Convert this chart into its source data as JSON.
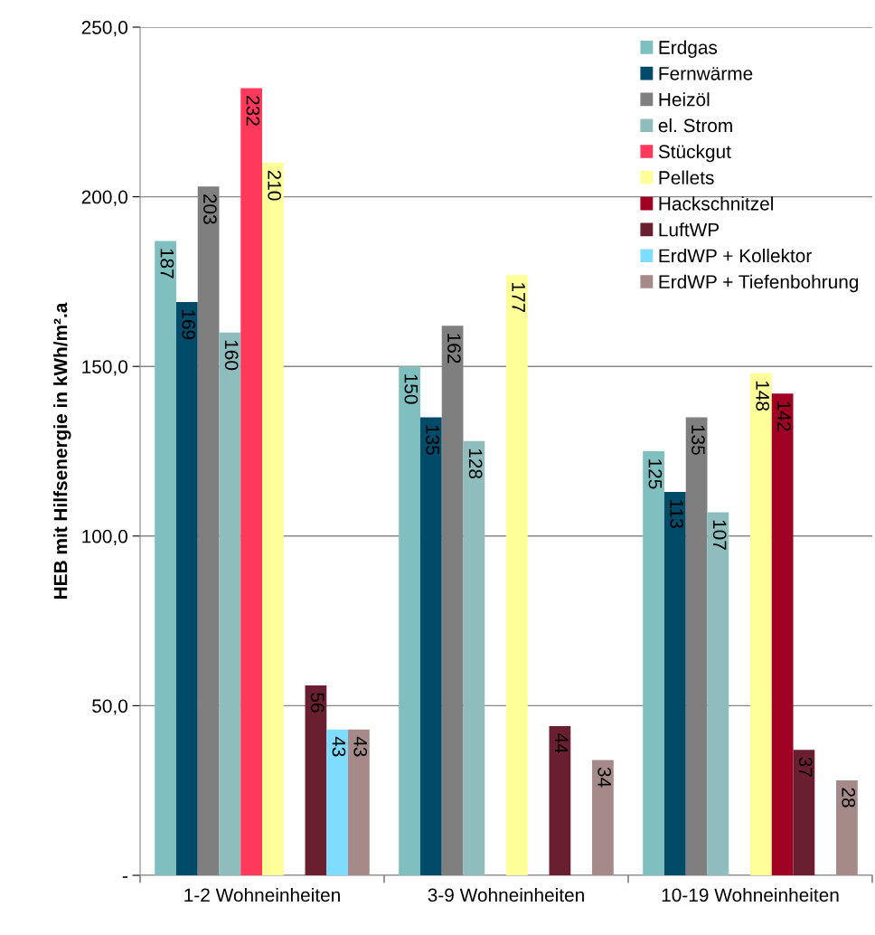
{
  "chart_data": {
    "type": "bar",
    "ylabel": "HEB mit Hilfsenergie in kWh/m².a",
    "categories": [
      "1-2 Wohneinheiten",
      "3-9 Wohneinheiten",
      "10-19 Wohneinheiten"
    ],
    "series": [
      {
        "name": "Erdgas",
        "color": "#7fbfbf",
        "values": [
          187,
          150,
          125
        ]
      },
      {
        "name": "Fernwärme",
        "color": "#014a68",
        "values": [
          169,
          135,
          113
        ]
      },
      {
        "name": "Heizöl",
        "color": "#7f7f7f",
        "values": [
          203,
          162,
          135
        ]
      },
      {
        "name": "el. Strom",
        "color": "#8fbcbd",
        "values": [
          160,
          128,
          107
        ]
      },
      {
        "name": "Stückgut",
        "color": "#ff395c",
        "values": [
          232,
          null,
          null
        ]
      },
      {
        "name": "Pellets",
        "color": "#ffff99",
        "values": [
          210,
          177,
          148
        ]
      },
      {
        "name": "Hackschnitzel",
        "color": "#a00021",
        "values": [
          null,
          null,
          142
        ]
      },
      {
        "name": "LuftWP",
        "color": "#6a1f30",
        "values": [
          56,
          44,
          37
        ]
      },
      {
        "name": "ErdWP + Kollektor",
        "color": "#7fdcff",
        "values": [
          43,
          null,
          null
        ]
      },
      {
        "name": "ErdWP + Tiefenbohrung",
        "color": "#a68a8a",
        "values": [
          43,
          34,
          28
        ]
      }
    ],
    "ylim": [
      0,
      250
    ],
    "yticks": [
      {
        "value": 0,
        "label": "-"
      },
      {
        "value": 50,
        "label": "50,0"
      },
      {
        "value": 100,
        "label": "100,0"
      },
      {
        "value": 150,
        "label": "150,0"
      },
      {
        "value": 200,
        "label": "200,0"
      },
      {
        "value": 250,
        "label": "250,0"
      }
    ],
    "grid": "y",
    "legend": "top right",
    "data_labels": true
  }
}
